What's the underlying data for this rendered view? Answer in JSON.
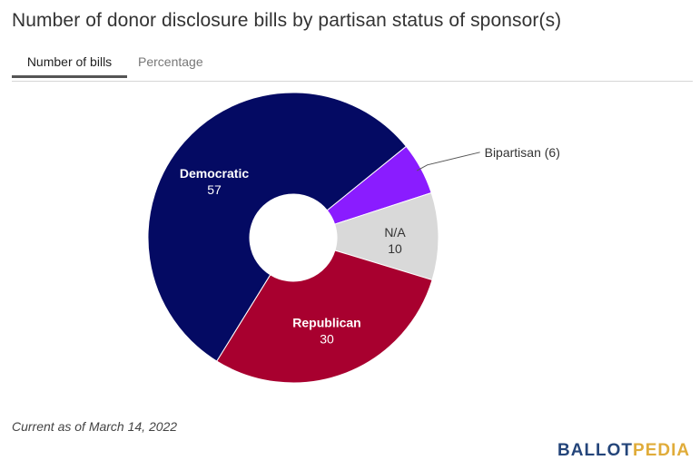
{
  "title": "Number of donor disclosure bills by partisan status of sponsor(s)",
  "tabs": [
    {
      "label": "Number of bills",
      "active": true
    },
    {
      "label": "Percentage",
      "active": false
    }
  ],
  "chart_data": {
    "type": "pie",
    "donut": true,
    "start_angle_deg": 51,
    "slices": [
      {
        "label": "Bipartisan",
        "value": 6,
        "color": "#8a1cff",
        "label_text_color": "#333333",
        "label_style": "callout",
        "display": "Bipartisan (6)"
      },
      {
        "label": "N/A",
        "value": 10,
        "color": "#d9d9d9",
        "label_text_color": "#333333",
        "label_style": "inside",
        "display_value": "10"
      },
      {
        "label": "Republican",
        "value": 30,
        "color": "#a8002f",
        "label_text_color": "#ffffff",
        "label_style": "inside",
        "display_value": "30"
      },
      {
        "label": "Democratic",
        "value": 57,
        "color": "#040a63",
        "label_text_color": "#ffffff",
        "label_style": "inside",
        "display_value": "57"
      }
    ]
  },
  "footnote": "Current as of March 14, 2022",
  "logo": {
    "part1": "BALLOT",
    "part2": "PEDIA"
  }
}
